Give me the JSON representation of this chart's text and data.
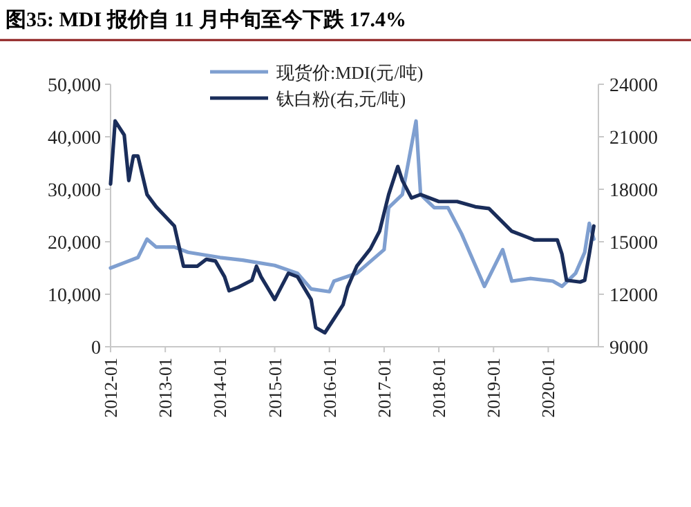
{
  "chart_data": {
    "type": "line",
    "title": "图35: MDI 报价自 11 月中旬至今下跌 17.4%",
    "xlim": [
      "2012-01",
      "2020-12"
    ],
    "xticks": [
      "2012-01",
      "2013-01",
      "2014-01",
      "2015-01",
      "2016-01",
      "2017-01",
      "2018-01",
      "2019-01",
      "2020-01"
    ],
    "ylim": [
      0,
      50000
    ],
    "yticks": [
      {
        "value": 0,
        "label": "0"
      },
      {
        "value": 10000,
        "label": "10,000"
      },
      {
        "value": 20000,
        "label": "20,000"
      },
      {
        "value": 30000,
        "label": "30,000"
      },
      {
        "value": 40000,
        "label": "40,000"
      },
      {
        "value": 50000,
        "label": "50,000"
      }
    ],
    "y2lim": [
      9000,
      24000
    ],
    "y2ticks": [
      9000,
      12000,
      15000,
      18000,
      21000,
      24000
    ],
    "legend": "top",
    "series": [
      {
        "name": "现货价:MDI(元/吨)",
        "color": "#7f9fd0",
        "x": [
          "2012-01",
          "2012-04",
          "2012-07",
          "2012-09",
          "2012-11",
          "2013-03",
          "2013-06",
          "2014-01",
          "2014-06",
          "2015-01",
          "2015-06",
          "2015-09",
          "2016-01",
          "2016-02",
          "2016-07",
          "2017-01",
          "2017-02",
          "2017-05",
          "2017-08",
          "2017-09",
          "2017-12",
          "2018-03",
          "2018-06",
          "2018-09",
          "2018-11",
          "2019-03",
          "2019-05",
          "2019-09",
          "2020-02",
          "2020-04",
          "2020-07",
          "2020-09",
          "2020-10",
          "2020-11"
        ],
        "values": [
          15000,
          16000,
          17000,
          20500,
          19000,
          19000,
          18000,
          17000,
          16500,
          15500,
          14000,
          11000,
          10500,
          12500,
          14000,
          18500,
          26500,
          29000,
          43000,
          29000,
          26500,
          26500,
          21500,
          15500,
          11500,
          18500,
          12500,
          13000,
          12500,
          11500,
          14000,
          18000,
          23500,
          20500
        ]
      },
      {
        "name": "钛白粉(右,元/吨)",
        "color": "#1a2d5a",
        "axis": "y2",
        "x": [
          "2012-01",
          "2012-02",
          "2012-04",
          "2012-05",
          "2012-06",
          "2012-07",
          "2012-09",
          "2012-11",
          "2013-03",
          "2013-05",
          "2013-08",
          "2013-10",
          "2013-12",
          "2014-02",
          "2014-03",
          "2014-05",
          "2014-08",
          "2014-09",
          "2014-10",
          "2015-01",
          "2015-04",
          "2015-06",
          "2015-09",
          "2015-10",
          "2015-12",
          "2016-02",
          "2016-04",
          "2016-05",
          "2016-07",
          "2016-10",
          "2016-12",
          "2017-02",
          "2017-04",
          "2017-05",
          "2017-07",
          "2017-09",
          "2018-01",
          "2018-05",
          "2018-09",
          "2018-12",
          "2019-05",
          "2019-10",
          "2020-03",
          "2020-04",
          "2020-05",
          "2020-08",
          "2020-09",
          "2020-10",
          "2020-11"
        ],
        "values": [
          18300,
          21900,
          21100,
          18500,
          19900,
          19900,
          17700,
          17000,
          15900,
          13600,
          13600,
          14000,
          13900,
          13000,
          12200,
          12400,
          12800,
          13600,
          13000,
          11700,
          13200,
          13000,
          11700,
          10100,
          9800,
          10600,
          11400,
          12400,
          13600,
          14600,
          15600,
          17700,
          19300,
          18500,
          17500,
          17700,
          17300,
          17300,
          17000,
          16900,
          15600,
          15100,
          15100,
          14300,
          12800,
          12700,
          12800,
          14300,
          15900
        ]
      }
    ]
  }
}
